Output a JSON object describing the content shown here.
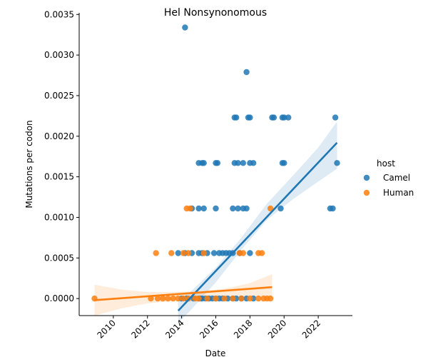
{
  "chart_data": {
    "type": "scatter",
    "title": "Hel Nonsynonomous",
    "xlabel": "Date",
    "ylabel": "Mutations per codon",
    "xlim": [
      2008.0,
      2024.0
    ],
    "ylim": [
      -0.00021,
      0.00352
    ],
    "x_ticks": [
      2010,
      2012,
      2014,
      2016,
      2018,
      2020,
      2022
    ],
    "y_ticks": [
      0.0,
      0.0005,
      0.001,
      0.0015,
      0.002,
      0.0025,
      0.003,
      0.0035
    ],
    "y_tick_labels": [
      "0.0000",
      "0.0005",
      "0.0010",
      "0.0015",
      "0.0020",
      "0.0025",
      "0.0030",
      "0.0035"
    ],
    "grid": false,
    "legend": {
      "title": "host",
      "placement": "right"
    },
    "series": [
      {
        "name": "Camel",
        "color": "#1f77b4",
        "points": [
          [
            2014.2,
            0.00334
          ],
          [
            2017.8,
            0.00279
          ],
          [
            2017.1,
            0.00223
          ],
          [
            2017.2,
            0.00223
          ],
          [
            2017.9,
            0.00223
          ],
          [
            2018.0,
            0.00223
          ],
          [
            2019.3,
            0.00223
          ],
          [
            2019.4,
            0.00223
          ],
          [
            2019.9,
            0.00223
          ],
          [
            2020.0,
            0.00223
          ],
          [
            2020.25,
            0.00223
          ],
          [
            2023.0,
            0.00223
          ],
          [
            2015.0,
            0.00167
          ],
          [
            2015.2,
            0.00167
          ],
          [
            2015.3,
            0.00167
          ],
          [
            2016.0,
            0.00167
          ],
          [
            2016.1,
            0.00167
          ],
          [
            2017.1,
            0.00167
          ],
          [
            2017.3,
            0.00167
          ],
          [
            2017.6,
            0.00167
          ],
          [
            2018.0,
            0.00167
          ],
          [
            2018.2,
            0.00167
          ],
          [
            2019.9,
            0.00167
          ],
          [
            2020.0,
            0.00167
          ],
          [
            2023.1,
            0.00167
          ],
          [
            2014.6,
            0.00111
          ],
          [
            2015.0,
            0.00111
          ],
          [
            2015.3,
            0.00111
          ],
          [
            2016.0,
            0.00111
          ],
          [
            2017.0,
            0.00111
          ],
          [
            2017.3,
            0.00111
          ],
          [
            2017.6,
            0.00111
          ],
          [
            2017.8,
            0.00111
          ],
          [
            2019.8,
            0.00111
          ],
          [
            2022.7,
            0.00111
          ],
          [
            2022.85,
            0.00111
          ],
          [
            2013.8,
            0.00056
          ],
          [
            2014.2,
            0.00056
          ],
          [
            2014.6,
            0.00056
          ],
          [
            2015.0,
            0.00056
          ],
          [
            2015.2,
            0.00056
          ],
          [
            2015.5,
            0.00056
          ],
          [
            2015.9,
            0.00056
          ],
          [
            2016.2,
            0.00056
          ],
          [
            2016.4,
            0.00056
          ],
          [
            2016.6,
            0.00056
          ],
          [
            2016.8,
            0.00056
          ],
          [
            2017.0,
            0.00056
          ],
          [
            2017.4,
            0.00056
          ],
          [
            2018.0,
            0.00056
          ],
          [
            2014.0,
            0.0
          ],
          [
            2014.3,
            0.0
          ],
          [
            2014.7,
            0.0
          ],
          [
            2015.0,
            0.0
          ],
          [
            2015.1,
            0.0
          ],
          [
            2015.2,
            0.0
          ],
          [
            2015.4,
            0.0
          ],
          [
            2015.6,
            0.0
          ],
          [
            2015.8,
            0.0
          ],
          [
            2016.0,
            0.0
          ],
          [
            2016.2,
            0.0
          ],
          [
            2016.4,
            0.0
          ],
          [
            2016.7,
            0.0
          ],
          [
            2017.0,
            0.0
          ],
          [
            2017.2,
            0.0
          ],
          [
            2017.5,
            0.0
          ],
          [
            2017.8,
            0.0
          ],
          [
            2018.2,
            0.0
          ]
        ],
        "fit_line": [
          [
            2013.8,
            -0.00015
          ],
          [
            2023.1,
            0.00192
          ]
        ],
        "fit_band": {
          "x": [
            2013.8,
            2014.5,
            2016.0,
            2017.5,
            2019.0,
            2020.5,
            2022.0,
            2023.1
          ],
          "upper": [
            -2e-05,
            8e-05,
            0.00038,
            0.00075,
            0.00117,
            0.00151,
            0.00186,
            0.00218
          ],
          "lower": [
            -0.0003,
            -0.00015,
            0.0002,
            0.0006,
            0.00097,
            0.00122,
            0.00144,
            0.0016
          ]
        }
      },
      {
        "name": "Human",
        "color": "#ff7f0e",
        "points": [
          [
            2008.9,
            0.0
          ],
          [
            2012.2,
            0.0
          ],
          [
            2012.6,
            0.0
          ],
          [
            2012.9,
            0.0
          ],
          [
            2013.2,
            0.0
          ],
          [
            2013.5,
            0.0
          ],
          [
            2013.8,
            0.0
          ],
          [
            2014.1,
            0.0
          ],
          [
            2014.4,
            0.0
          ],
          [
            2014.8,
            0.0
          ],
          [
            2015.0,
            0.0
          ],
          [
            2015.5,
            0.0
          ],
          [
            2016.0,
            0.0
          ],
          [
            2016.5,
            0.0
          ],
          [
            2017.0,
            0.0
          ],
          [
            2017.5,
            0.0
          ],
          [
            2018.0,
            0.0
          ],
          [
            2018.5,
            0.0
          ],
          [
            2018.8,
            0.0
          ],
          [
            2019.0,
            0.0
          ],
          [
            2019.2,
            0.0
          ],
          [
            2012.5,
            0.00056
          ],
          [
            2013.4,
            0.00056
          ],
          [
            2014.1,
            0.00056
          ],
          [
            2014.4,
            0.00056
          ],
          [
            2015.3,
            0.00056
          ],
          [
            2017.4,
            0.00056
          ],
          [
            2017.6,
            0.00056
          ],
          [
            2018.5,
            0.00056
          ],
          [
            2018.7,
            0.00056
          ],
          [
            2014.3,
            0.00111
          ],
          [
            2014.5,
            0.00111
          ],
          [
            2019.2,
            0.00111
          ]
        ],
        "fit_line": [
          [
            2008.9,
            -2e-05
          ],
          [
            2019.3,
            0.00014
          ]
        ],
        "fit_band": {
          "x": [
            2008.9,
            2010.5,
            2012.0,
            2013.5,
            2015.0,
            2016.5,
            2018.0,
            2019.3
          ],
          "upper": [
            0.00017,
            0.00011,
            8e-05,
            8e-05,
            9e-05,
            0.00012,
            0.00019,
            0.0003
          ],
          "lower": [
            -0.00021,
            -0.00012,
            -6e-05,
            -3e-05,
            -2e-05,
            -1e-05,
            2e-05,
            0.0
          ]
        }
      }
    ]
  }
}
